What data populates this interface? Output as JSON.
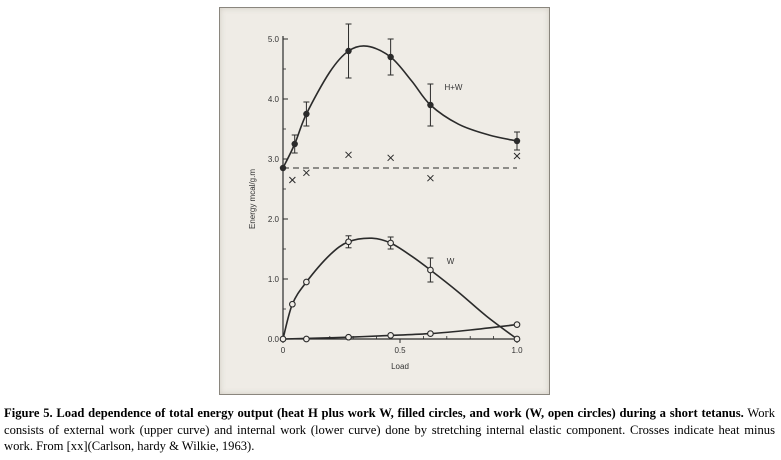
{
  "chart_data": {
    "type": "line",
    "xlabel": "Load",
    "ylabel": "Energy mcal/g.m",
    "xlim": [
      0,
      1.0
    ],
    "ylim": [
      0,
      5.0
    ],
    "x_ticks": [
      "0",
      "0.5",
      "1.0"
    ],
    "y_ticks": [
      "0.0",
      "1.0",
      "2.0",
      "3.0",
      "4.0",
      "5.0"
    ],
    "grid": false,
    "series": [
      {
        "name": "H+W",
        "marker": "filled-circle",
        "points": [
          {
            "x": 0.0,
            "y": 2.85
          },
          {
            "x": 0.05,
            "y": 3.25,
            "err": 0.15
          },
          {
            "x": 0.1,
            "y": 3.75,
            "err": 0.2
          },
          {
            "x": 0.28,
            "y": 4.8,
            "err": 0.45
          },
          {
            "x": 0.46,
            "y": 4.7,
            "err": 0.3
          },
          {
            "x": 0.63,
            "y": 3.9,
            "err": 0.35
          },
          {
            "x": 1.0,
            "y": 3.3,
            "err": 0.15
          }
        ],
        "curve": [
          [
            0.0,
            2.85
          ],
          [
            0.05,
            3.25
          ],
          [
            0.1,
            3.75
          ],
          [
            0.2,
            4.45
          ],
          [
            0.28,
            4.8
          ],
          [
            0.36,
            4.88
          ],
          [
            0.46,
            4.7
          ],
          [
            0.55,
            4.3
          ],
          [
            0.63,
            3.9
          ],
          [
            0.75,
            3.58
          ],
          [
            0.88,
            3.4
          ],
          [
            1.0,
            3.3
          ]
        ]
      },
      {
        "name": "W",
        "marker": "open-circle",
        "points": [
          {
            "x": 0.04,
            "y": 0.58
          },
          {
            "x": 0.1,
            "y": 0.95
          },
          {
            "x": 0.28,
            "y": 1.62,
            "err": 0.1
          },
          {
            "x": 0.46,
            "y": 1.6,
            "err": 0.1
          },
          {
            "x": 0.63,
            "y": 1.15,
            "err": 0.2
          },
          {
            "x": 1.0,
            "y": 0.0
          }
        ],
        "curve": [
          [
            0.0,
            0.0
          ],
          [
            0.04,
            0.58
          ],
          [
            0.1,
            0.95
          ],
          [
            0.2,
            1.4
          ],
          [
            0.28,
            1.62
          ],
          [
            0.38,
            1.68
          ],
          [
            0.46,
            1.6
          ],
          [
            0.55,
            1.38
          ],
          [
            0.63,
            1.15
          ],
          [
            0.75,
            0.78
          ],
          [
            0.87,
            0.38
          ],
          [
            1.0,
            0.0
          ]
        ]
      },
      {
        "name": "",
        "marker": "open-circle",
        "points": [
          {
            "x": 0.0,
            "y": 0.0
          },
          {
            "x": 0.1,
            "y": 0.0
          },
          {
            "x": 0.28,
            "y": 0.03
          },
          {
            "x": 0.46,
            "y": 0.06
          },
          {
            "x": 0.63,
            "y": 0.09
          },
          {
            "x": 1.0,
            "y": 0.24
          }
        ],
        "curve": [
          [
            0.0,
            0.0
          ],
          [
            0.1,
            0.01
          ],
          [
            0.28,
            0.03
          ],
          [
            0.46,
            0.06
          ],
          [
            0.63,
            0.09
          ],
          [
            0.8,
            0.15
          ],
          [
            1.0,
            0.24
          ]
        ]
      },
      {
        "name": "",
        "marker": "cross",
        "points": [
          {
            "x": 0.04,
            "y": 2.65
          },
          {
            "x": 0.1,
            "y": 2.77
          },
          {
            "x": 0.28,
            "y": 3.07
          },
          {
            "x": 0.46,
            "y": 3.02
          },
          {
            "x": 0.63,
            "y": 2.68
          },
          {
            "x": 1.0,
            "y": 3.05
          }
        ]
      }
    ],
    "reference_line": {
      "style": "dashed",
      "y": 2.85,
      "x": [
        0.0,
        1.0
      ]
    },
    "colors": {
      "ink": "#2b2b2b",
      "paper": "#efece6",
      "frame": "#8a867e"
    }
  },
  "caption": {
    "bold": "Figure 5. Load dependence of total energy output (heat H plus work W, filled circles, and work (W, open circles) during a short tetanus.",
    "text": " Work consists of external work (upper curve) and internal work (lower curve) done by stretching internal elastic component. Crosses indicate heat minus work. From [xx](Carlson, hardy & Wilkie, 1963)."
  }
}
